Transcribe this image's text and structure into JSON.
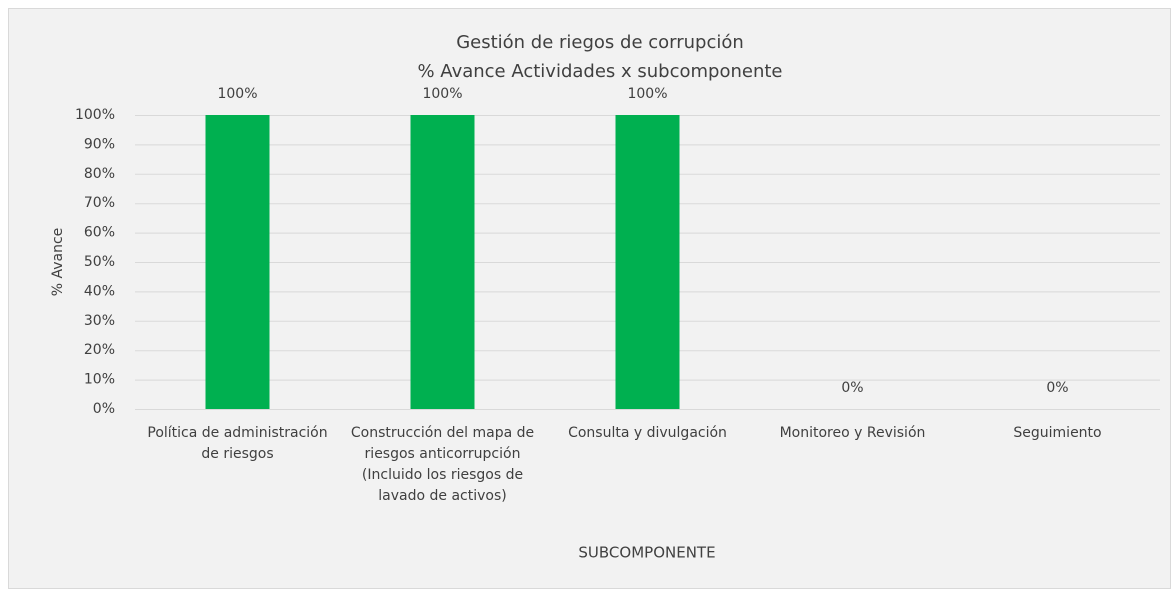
{
  "chart_data": {
    "type": "bar",
    "title": "Gestión de riegos de corrupción",
    "subtitle": "% Avance Actividades x subcomponente",
    "x_label": "SUBCOMPONENTE",
    "y_label": "% Avance",
    "categories": [
      "Política de administración de riesgos",
      "Construcción del mapa de riesgos anticorrupción (Incluido los riesgos de lavado de activos)",
      "Consulta y divulgación",
      "Monitoreo y Revisión",
      "Seguimiento"
    ],
    "values": [
      100,
      100,
      100,
      0,
      0
    ],
    "value_labels": [
      "100%",
      "100%",
      "100%",
      "0%",
      "0%"
    ],
    "color": "#00b050",
    "ylim": [
      0,
      100
    ],
    "yticks": [
      {
        "value": 0,
        "label": "0%"
      },
      {
        "value": 10,
        "label": "10%"
      },
      {
        "value": 20,
        "label": "20%"
      },
      {
        "value": 30,
        "label": "30%"
      },
      {
        "value": 40,
        "label": "40%"
      },
      {
        "value": 50,
        "label": "50%"
      },
      {
        "value": 60,
        "label": "60%"
      },
      {
        "value": 70,
        "label": "70%"
      },
      {
        "value": 80,
        "label": "80%"
      },
      {
        "value": 90,
        "label": "90%"
      },
      {
        "value": 100,
        "label": "100%"
      }
    ],
    "grid": true
  }
}
